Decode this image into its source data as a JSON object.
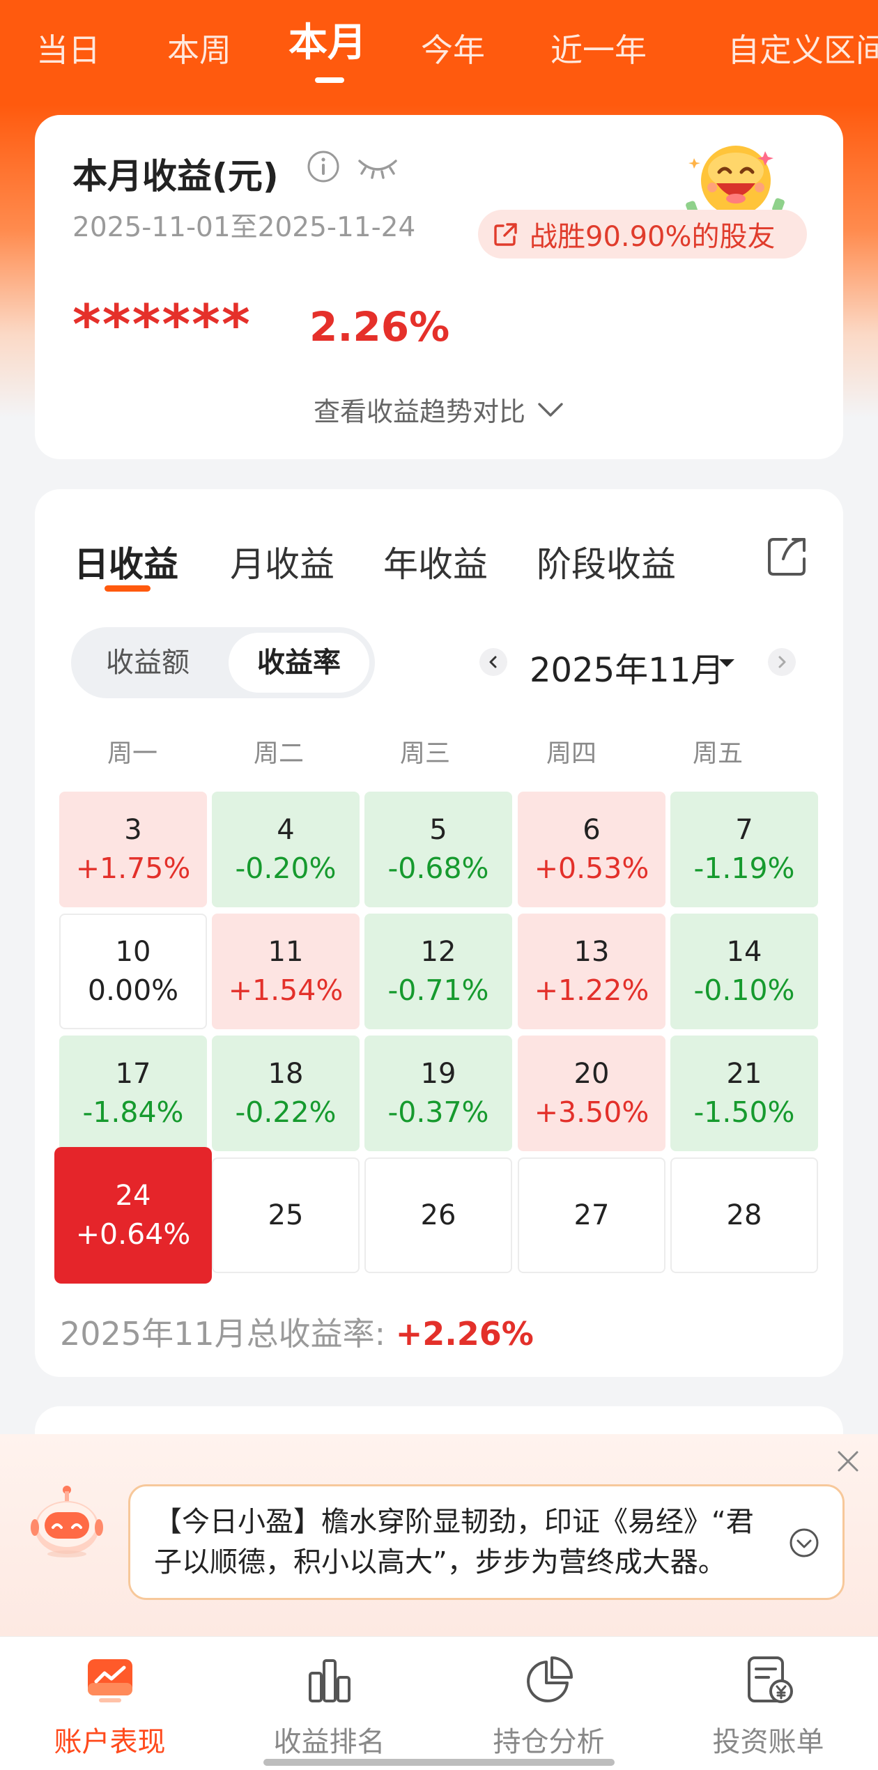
{
  "top_tabs": [
    "当日",
    "本周",
    "本月",
    "今年",
    "近一年",
    "自定义区间"
  ],
  "summary": {
    "title": "本月收益(元)",
    "date_range": "2025-11-01至2025-11-24",
    "beat_text": "战胜90.90%的股友",
    "hidden_amount": "******",
    "rate": "2.26%",
    "trend_link": "查看收益趋势对比"
  },
  "calendar": {
    "tabs": [
      "日收益",
      "月收益",
      "年收益",
      "阶段收益"
    ],
    "toggle": {
      "amount": "收益额",
      "rate": "收益率"
    },
    "month": "2025年11月",
    "weekdays": [
      "周一",
      "周二",
      "周三",
      "周四",
      "周五"
    ],
    "rows": [
      [
        {
          "day": "3",
          "pct": "+1.75%"
        },
        {
          "day": "4",
          "pct": "-0.20%"
        },
        {
          "day": "5",
          "pct": "-0.68%"
        },
        {
          "day": "6",
          "pct": "+0.53%"
        },
        {
          "day": "7",
          "pct": "-1.19%"
        }
      ],
      [
        {
          "day": "10",
          "pct": "0.00%"
        },
        {
          "day": "11",
          "pct": "+1.54%"
        },
        {
          "day": "12",
          "pct": "-0.71%"
        },
        {
          "day": "13",
          "pct": "+1.22%"
        },
        {
          "day": "14",
          "pct": "-0.10%"
        }
      ],
      [
        {
          "day": "17",
          "pct": "-1.84%"
        },
        {
          "day": "18",
          "pct": "-0.22%"
        },
        {
          "day": "19",
          "pct": "-0.37%"
        },
        {
          "day": "20",
          "pct": "+3.50%"
        },
        {
          "day": "21",
          "pct": "-1.50%"
        }
      ],
      [
        {
          "day": "24",
          "pct": "+0.64%"
        },
        {
          "day": "25",
          "pct": ""
        },
        {
          "day": "26",
          "pct": ""
        },
        {
          "day": "27",
          "pct": ""
        },
        {
          "day": "28",
          "pct": ""
        }
      ]
    ],
    "total_label": "2025年11月总收益率:",
    "total_value": "+2.26%",
    "colors": {
      "up": "#e3302a",
      "down": "#169a2e",
      "today": "#e5252a"
    }
  },
  "assistant": {
    "message": "【今日小盈】檐水穿阶显韧劲，印证《易经》“君子以顺德，积小以高大”，步步为营终成大器。"
  },
  "bottom_nav": [
    {
      "label": "账户表现",
      "icon": "chart-card-icon"
    },
    {
      "label": "收益排名",
      "icon": "bar-chart-icon"
    },
    {
      "label": "持仓分析",
      "icon": "pie-chart-icon"
    },
    {
      "label": "投资账单",
      "icon": "bill-icon"
    }
  ],
  "brand_color": "#ff5a0e"
}
